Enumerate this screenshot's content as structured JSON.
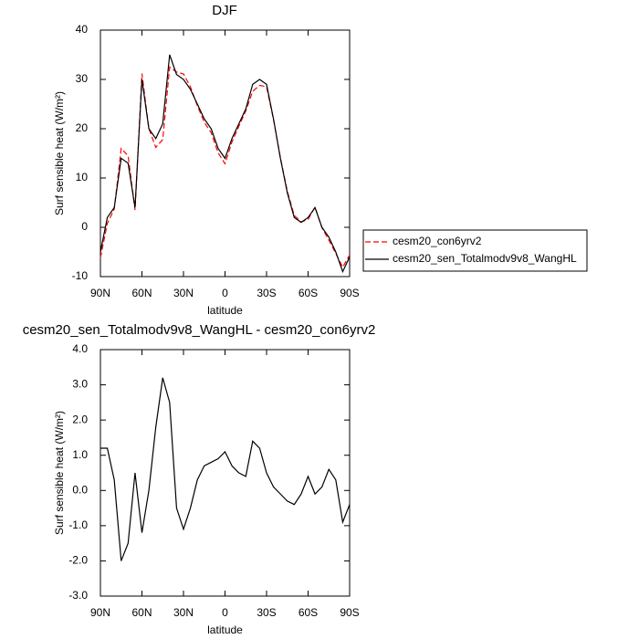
{
  "chart_data": [
    {
      "type": "line",
      "title": "DJF",
      "xlabel": "latitude",
      "ylabel": "Surf sensible heat (W/m²)",
      "x": [
        90,
        85,
        80,
        75,
        70,
        65,
        60,
        55,
        50,
        45,
        40,
        35,
        30,
        25,
        20,
        15,
        10,
        5,
        0,
        -5,
        -10,
        -15,
        -20,
        -25,
        -30,
        -35,
        -40,
        -45,
        -50,
        -55,
        -60,
        -65,
        -70,
        -75,
        -80,
        -85,
        -90
      ],
      "series": [
        {
          "name": "cesm20_con6yrv2",
          "color": "#ff0000",
          "dash": true,
          "values": [
            -6.2,
            0.8,
            3.7,
            16,
            14.5,
            3.5,
            31.2,
            20,
            16.2,
            17.8,
            32.5,
            31.5,
            31.1,
            28.5,
            24.7,
            21.3,
            19.2,
            15.1,
            12.9,
            17.3,
            20.5,
            23.6,
            27.6,
            28.8,
            28.5,
            21.9,
            14.1,
            7.3,
            2.4,
            1.1,
            1.6,
            4.1,
            -0.1,
            -2.6,
            -5.3,
            -8.1,
            -5.6
          ]
        },
        {
          "name": "cesm20_sen_Totalmodv9v8_WangHL",
          "color": "#000000",
          "dash": false,
          "values": [
            -5,
            2,
            4,
            14,
            13,
            4,
            30,
            20,
            18,
            21,
            35,
            31,
            30,
            28,
            25,
            22,
            20,
            16,
            14,
            18,
            21,
            24,
            29,
            30,
            29,
            22,
            14,
            7,
            2,
            1,
            2,
            4,
            0,
            -2,
            -5,
            -9,
            -6
          ]
        }
      ],
      "xlim": [
        90,
        -90
      ],
      "xticks": [
        {
          "value": 90,
          "label": "90N"
        },
        {
          "value": 60,
          "label": "60N"
        },
        {
          "value": 30,
          "label": "30N"
        },
        0,
        {
          "value": -30,
          "label": "30S"
        },
        {
          "value": -60,
          "label": "60S"
        },
        {
          "value": -90,
          "label": "90S"
        }
      ],
      "ylim": [
        -10,
        40
      ],
      "yticks": [
        -10,
        0,
        10,
        20,
        30,
        40
      ],
      "legend": "right"
    },
    {
      "type": "line",
      "title": "cesm20_sen_Totalmodv9v8_WangHL - cesm20_con6yrv2",
      "xlabel": "latitude",
      "ylabel": "Surf sensible heat (W/m²)",
      "x": [
        90,
        85,
        80,
        75,
        70,
        65,
        60,
        55,
        50,
        45,
        40,
        35,
        30,
        25,
        20,
        15,
        10,
        5,
        0,
        -5,
        -10,
        -15,
        -20,
        -25,
        -30,
        -35,
        -40,
        -45,
        -50,
        -55,
        -60,
        -65,
        -70,
        -75,
        -80,
        -85,
        -90
      ],
      "color": "#000000",
      "values": [
        1.2,
        1.2,
        0.3,
        -2.0,
        -1.5,
        0.5,
        -1.2,
        0.0,
        1.8,
        3.2,
        2.5,
        -0.5,
        -1.1,
        -0.5,
        0.3,
        0.7,
        0.8,
        0.9,
        1.1,
        0.7,
        0.5,
        0.4,
        1.4,
        1.2,
        0.5,
        0.1,
        -0.1,
        -0.3,
        -0.4,
        -0.1,
        0.4,
        -0.1,
        0.1,
        0.6,
        0.3,
        -0.9,
        -0.4
      ],
      "xlim": [
        90,
        -90
      ],
      "xticks": [
        {
          "value": 90,
          "label": "90N"
        },
        {
          "value": 60,
          "label": "60N"
        },
        {
          "value": 30,
          "label": "30N"
        },
        0,
        {
          "value": -30,
          "label": "30S"
        },
        {
          "value": -60,
          "label": "60S"
        },
        {
          "value": -90,
          "label": "90S"
        }
      ],
      "ylim": [
        -3,
        4
      ],
      "yticks": [
        {
          "value": -3,
          "label": "-3.0"
        },
        {
          "value": -2,
          "label": "-2.0"
        },
        {
          "value": -1,
          "label": "-1.0"
        },
        {
          "value": 0,
          "label": "0.0"
        },
        {
          "value": 1,
          "label": "1.0"
        },
        {
          "value": 2,
          "label": "2.0"
        },
        {
          "value": 3,
          "label": "3.0"
        },
        {
          "value": 4,
          "label": "4.0"
        }
      ]
    }
  ]
}
